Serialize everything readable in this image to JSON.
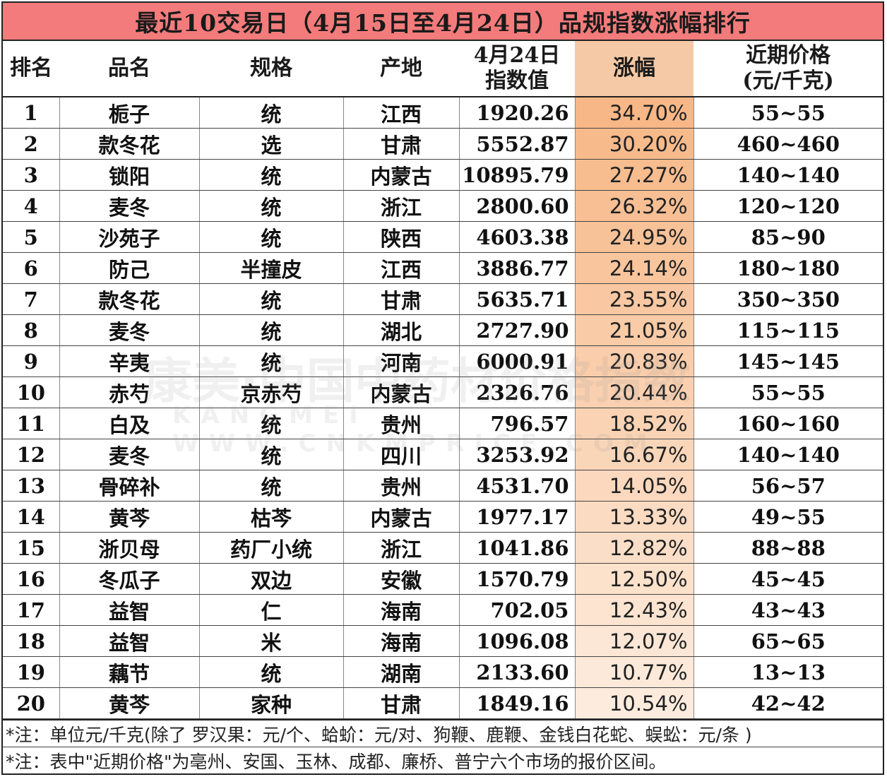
{
  "title": "最近10交易日（4月15日至4月24日）品规指数涨幅排行",
  "headers": {
    "rank": "排名",
    "name": "品名",
    "spec": "规格",
    "origin": "产地",
    "index_l1": "4月24日",
    "index_l2": "指数值",
    "change": "涨幅",
    "price_l1": "近期价格",
    "price_l2": "(元/千克)"
  },
  "rows": [
    {
      "rank": "1",
      "name": "栀子",
      "spec": "统",
      "origin": "江西",
      "index": "1920.26",
      "change": "34.70%",
      "price": "55~55"
    },
    {
      "rank": "2",
      "name": "款冬花",
      "spec": "选",
      "origin": "甘肃",
      "index": "5552.87",
      "change": "30.20%",
      "price": "460~460"
    },
    {
      "rank": "3",
      "name": "锁阳",
      "spec": "统",
      "origin": "内蒙古",
      "index": "10895.79",
      "change": "27.27%",
      "price": "140~140"
    },
    {
      "rank": "4",
      "name": "麦冬",
      "spec": "统",
      "origin": "浙江",
      "index": "2800.60",
      "change": "26.32%",
      "price": "120~120"
    },
    {
      "rank": "5",
      "name": "沙苑子",
      "spec": "统",
      "origin": "陕西",
      "index": "4603.38",
      "change": "24.95%",
      "price": "85~90"
    },
    {
      "rank": "6",
      "name": "防己",
      "spec": "半撞皮",
      "origin": "江西",
      "index": "3886.77",
      "change": "24.14%",
      "price": "180~180"
    },
    {
      "rank": "7",
      "name": "款冬花",
      "spec": "统",
      "origin": "甘肃",
      "index": "5635.71",
      "change": "23.55%",
      "price": "350~350"
    },
    {
      "rank": "8",
      "name": "麦冬",
      "spec": "统",
      "origin": "湖北",
      "index": "2727.90",
      "change": "21.05%",
      "price": "115~115"
    },
    {
      "rank": "9",
      "name": "辛夷",
      "spec": "统",
      "origin": "河南",
      "index": "6000.91",
      "change": "20.83%",
      "price": "145~145"
    },
    {
      "rank": "10",
      "name": "赤芍",
      "spec": "京赤芍",
      "origin": "内蒙古",
      "index": "2326.76",
      "change": "20.44%",
      "price": "55~55"
    },
    {
      "rank": "11",
      "name": "白及",
      "spec": "统",
      "origin": "贵州",
      "index": "796.57",
      "change": "18.52%",
      "price": "160~160"
    },
    {
      "rank": "12",
      "name": "麦冬",
      "spec": "统",
      "origin": "四川",
      "index": "3253.92",
      "change": "16.67%",
      "price": "140~140"
    },
    {
      "rank": "13",
      "name": "骨碎补",
      "spec": "统",
      "origin": "贵州",
      "index": "4531.70",
      "change": "14.05%",
      "price": "56~57"
    },
    {
      "rank": "14",
      "name": "黄芩",
      "spec": "枯芩",
      "origin": "内蒙古",
      "index": "1977.17",
      "change": "13.33%",
      "price": "49~55"
    },
    {
      "rank": "15",
      "name": "浙贝母",
      "spec": "药厂小统",
      "origin": "浙江",
      "index": "1041.86",
      "change": "12.82%",
      "price": "88~88"
    },
    {
      "rank": "16",
      "name": "冬瓜子",
      "spec": "双边",
      "origin": "安徽",
      "index": "1570.79",
      "change": "12.50%",
      "price": "45~45"
    },
    {
      "rank": "17",
      "name": "益智",
      "spec": "仁",
      "origin": "海南",
      "index": "702.05",
      "change": "12.43%",
      "price": "43~43"
    },
    {
      "rank": "18",
      "name": "益智",
      "spec": "米",
      "origin": "海南",
      "index": "1096.08",
      "change": "12.07%",
      "price": "65~65"
    },
    {
      "rank": "19",
      "name": "藕节",
      "spec": "统",
      "origin": "湖南",
      "index": "2133.60",
      "change": "10.77%",
      "price": "13~13"
    },
    {
      "rank": "20",
      "name": "黄芩",
      "spec": "家种",
      "origin": "甘肃",
      "index": "1849.16",
      "change": "10.54%",
      "price": "42~42"
    }
  ],
  "notes": [
    "*注：单位元/千克(除了 罗汉果：元/个、蛤蚧：元/对、狗鞭、鹿鞭、金钱白花蛇、蜈蚣：元/条 )",
    "*注：表中\"近期价格\"为亳州、安国、玉林、成都、廉桥、普宁六个市场的报价区间。"
  ],
  "watermark": {
    "line1": "康美·中国中药材价格指数",
    "line2": "KANGMEI  WWW.CNKMPRICE.COM"
  }
}
